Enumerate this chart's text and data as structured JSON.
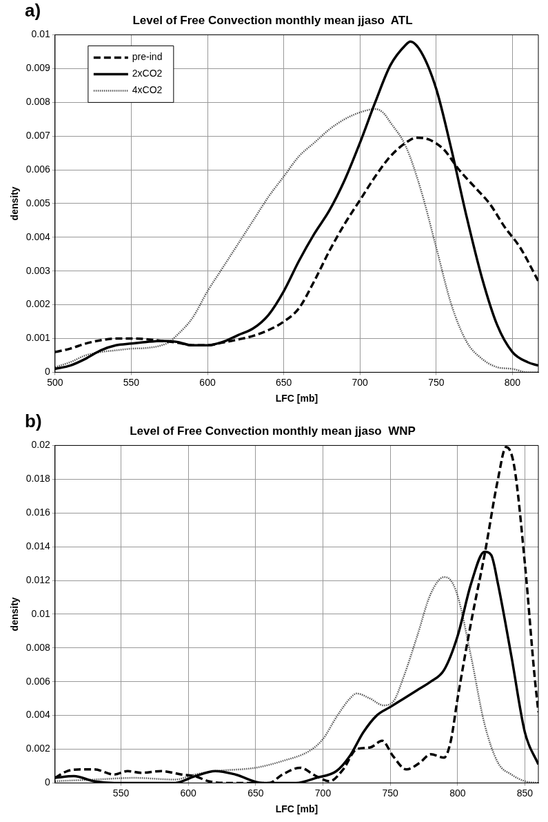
{
  "chart_data": [
    {
      "type": "line",
      "title": "Level of Free Convection monthly mean jjaso  ATL",
      "xlabel": "LFC [mb]",
      "ylabel": "density",
      "annotations": [
        "a)"
      ],
      "xlim": [
        500,
        817
      ],
      "xticks": [
        500,
        550,
        600,
        650,
        700,
        750,
        800
      ],
      "ylim": [
        0,
        0.01
      ],
      "yticks": [
        0,
        0.001,
        0.002,
        0.003,
        0.004,
        0.005,
        0.006,
        0.007,
        0.008,
        0.009,
        0.01
      ],
      "grid": true,
      "legend": "top left",
      "marker": "none",
      "series": [
        {
          "name": "pre-ind",
          "color": "#000000",
          "line_style": "dashed",
          "x": [
            500,
            510,
            520,
            530,
            540,
            550,
            560,
            570,
            580,
            590,
            600,
            610,
            620,
            630,
            640,
            650,
            660,
            670,
            680,
            690,
            700,
            710,
            720,
            730,
            737,
            745,
            755,
            765,
            775,
            785,
            795,
            805,
            817
          ],
          "values": [
            0.0006,
            0.0007,
            0.00085,
            0.00095,
            0.001,
            0.001,
            0.00098,
            0.00093,
            0.00088,
            0.0008,
            0.0008,
            0.00088,
            0.00097,
            0.00108,
            0.00125,
            0.0015,
            0.0019,
            0.0027,
            0.0036,
            0.0044,
            0.0051,
            0.0058,
            0.0064,
            0.0068,
            0.00695,
            0.0069,
            0.0066,
            0.006,
            0.0055,
            0.005,
            0.0043,
            0.0037,
            0.0027
          ]
        },
        {
          "name": "2xCO2",
          "color": "#000000",
          "line_style": "solid",
          "x": [
            500,
            510,
            520,
            530,
            540,
            550,
            560,
            570,
            580,
            590,
            600,
            610,
            620,
            630,
            640,
            650,
            660,
            670,
            680,
            690,
            700,
            710,
            720,
            730,
            733,
            740,
            750,
            760,
            770,
            780,
            790,
            800,
            810,
            817
          ],
          "values": [
            0.0001,
            0.0002,
            0.0004,
            0.00065,
            0.0008,
            0.00085,
            0.0009,
            0.00093,
            0.0009,
            0.0008,
            0.0008,
            0.0009,
            0.0011,
            0.0013,
            0.0017,
            0.0024,
            0.0033,
            0.0041,
            0.0048,
            0.0057,
            0.0068,
            0.008,
            0.0091,
            0.0097,
            0.0098,
            0.0095,
            0.0084,
            0.0066,
            0.0046,
            0.0028,
            0.0014,
            0.0006,
            0.0003,
            0.0002
          ]
        },
        {
          "name": "4xCO2",
          "color": "#555555",
          "line_style": "dotted",
          "x": [
            500,
            510,
            520,
            530,
            540,
            550,
            560,
            570,
            575,
            580,
            590,
            600,
            610,
            620,
            630,
            640,
            650,
            660,
            670,
            680,
            690,
            700,
            710,
            715,
            720,
            730,
            740,
            750,
            760,
            770,
            780,
            790,
            800,
            810,
            817
          ],
          "values": [
            0.00015,
            0.0003,
            0.0005,
            0.0006,
            0.00065,
            0.0007,
            0.00072,
            0.0008,
            0.0009,
            0.0011,
            0.0016,
            0.0024,
            0.0031,
            0.0038,
            0.0045,
            0.0052,
            0.0058,
            0.0064,
            0.0068,
            0.0072,
            0.0075,
            0.0077,
            0.0078,
            0.0077,
            0.0074,
            0.0067,
            0.0054,
            0.0037,
            0.002,
            0.0009,
            0.0004,
            0.00015,
            0.0001,
            0,
            0
          ]
        }
      ]
    },
    {
      "type": "line",
      "title": "Level of Free Convection monthly mean jjaso  WNP",
      "xlabel": "LFC [mb]",
      "ylabel": "density",
      "annotations": [
        "b)"
      ],
      "xlim": [
        501,
        860
      ],
      "xticks": [
        550,
        600,
        650,
        700,
        750,
        800,
        850
      ],
      "ylim": [
        0,
        0.02
      ],
      "yticks": [
        0,
        0.002,
        0.004,
        0.006,
        0.008,
        0.01,
        0.012,
        0.014,
        0.016,
        0.018,
        0.02
      ],
      "grid": true,
      "marker": "none",
      "series": [
        {
          "color": "#000000",
          "line_style": "dashed",
          "x": [
            501,
            510,
            520,
            530,
            545,
            555,
            565,
            580,
            595,
            605,
            615,
            630,
            660,
            670,
            683,
            695,
            705,
            715,
            725,
            735,
            744,
            752,
            762,
            772,
            780,
            790,
            795,
            800,
            810,
            820,
            830,
            836,
            842,
            850,
            857,
            860
          ],
          "values": [
            0.0003,
            0.0007,
            0.0008,
            0.0008,
            0.0005,
            0.0007,
            0.0006,
            0.0007,
            0.0005,
            0.0004,
            0.0001,
            0,
            0,
            0.0005,
            0.0009,
            0.0004,
            0.0001,
            0.0008,
            0.002,
            0.0021,
            0.0025,
            0.0016,
            0.0008,
            0.0012,
            0.0017,
            0.0015,
            0.0025,
            0.005,
            0.0095,
            0.0135,
            0.018,
            0.0199,
            0.0188,
            0.013,
            0.0065,
            0.0042
          ]
        },
        {
          "color": "#000000",
          "line_style": "solid",
          "x": [
            501,
            515,
            530,
            545,
            590,
            605,
            620,
            635,
            655,
            680,
            695,
            710,
            720,
            730,
            740,
            750,
            760,
            770,
            780,
            790,
            800,
            810,
            820,
            825,
            830,
            840,
            850,
            860
          ],
          "values": [
            0.0003,
            0.0004,
            0.0001,
            0,
            0,
            0.0004,
            0.0007,
            0.0005,
            0,
            0,
            0.0003,
            0.0007,
            0.0016,
            0.003,
            0.004,
            0.0045,
            0.005,
            0.0055,
            0.006,
            0.0067,
            0.0087,
            0.0118,
            0.0137,
            0.0135,
            0.0118,
            0.0075,
            0.003,
            0.0011
          ]
        },
        {
          "color": "#555555",
          "line_style": "dotted",
          "x": [
            501,
            530,
            560,
            590,
            605,
            620,
            650,
            670,
            690,
            700,
            710,
            720,
            725,
            735,
            745,
            752,
            760,
            770,
            780,
            790,
            795,
            800,
            810,
            820,
            830,
            840,
            850,
            860
          ],
          "values": [
            0.0001,
            0.0002,
            0.0003,
            0.0002,
            0.0005,
            0.0007,
            0.0009,
            0.0013,
            0.0019,
            0.0026,
            0.0039,
            0.005,
            0.0053,
            0.005,
            0.0046,
            0.0048,
            0.0063,
            0.0087,
            0.0112,
            0.0122,
            0.012,
            0.0111,
            0.0075,
            0.0035,
            0.0012,
            0.0005,
            0.0001,
            0
          ]
        }
      ]
    }
  ]
}
